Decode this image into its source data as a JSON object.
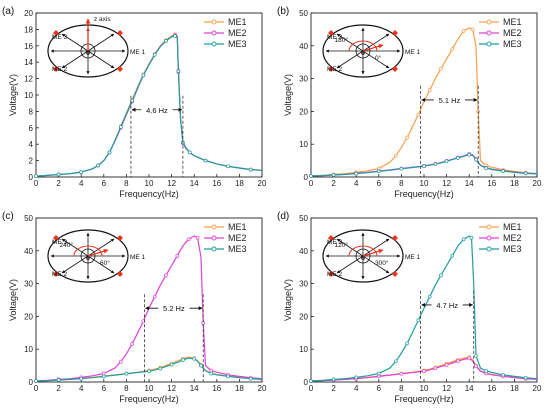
{
  "figure": {
    "panels": [
      {
        "label": "(a)",
        "inset": {
          "me1": "ME 1",
          "me2": "ME 2",
          "me3": "ME 3",
          "origin": "o",
          "axis_text": "z axis",
          "angles": []
        },
        "annotation": {
          "text": "4.6 Hz",
          "from_x": 8.4,
          "to_x": 13.0,
          "y": 8.2
        }
      },
      {
        "label": "(b)",
        "inset": {
          "me1": "ME 1",
          "me2": "ME 2",
          "me3": "ME 3",
          "origin": "o",
          "axis_text": "",
          "angles": [
            "180°",
            "0°"
          ]
        },
        "annotation": {
          "text": "5.1 Hz",
          "from_x": 9.7,
          "to_x": 14.8,
          "y": 23.5
        }
      },
      {
        "label": "(c)",
        "inset": {
          "me1": "ME 1",
          "me2": "ME 2",
          "me3": "ME 3",
          "origin": "o",
          "axis_text": "",
          "angles": [
            "240°",
            "60°"
          ]
        },
        "annotation": {
          "text": "5.2 Hz",
          "from_x": 9.6,
          "to_x": 14.8,
          "y": 22.5
        }
      },
      {
        "label": "(d)",
        "inset": {
          "me1": "ME 1",
          "me2": "ME 2",
          "me3": "ME 3",
          "origin": "o",
          "axis_text": "",
          "angles": [
            "120°",
            "300°"
          ]
        },
        "annotation": {
          "text": "4.7 Hz",
          "from_x": 9.7,
          "to_x": 14.4,
          "y": 23.5
        }
      }
    ]
  },
  "colors": {
    "ME1": "#F5A04A",
    "ME2": "#E040D8",
    "ME3": "#1E9E9E",
    "inset_arrow": "#E8361E",
    "axes": "#222222"
  },
  "chart_data": [
    {
      "type": "line",
      "xlabel": "Frequency(Hz)",
      "ylabel": "Voltage(V)",
      "xlim": [
        0,
        20
      ],
      "ylim": [
        0,
        20
      ],
      "xticks": [
        0,
        2,
        4,
        6,
        8,
        10,
        12,
        14,
        16,
        18,
        20
      ],
      "yticks": [
        0,
        2,
        4,
        6,
        8,
        10,
        12,
        14,
        16,
        18,
        20
      ],
      "legend": "top-right",
      "grid": false,
      "series": [
        {
          "name": "ME1",
          "x": [
            0,
            1,
            2,
            3,
            4,
            5,
            5.5,
            6,
            6.5,
            7,
            7.5,
            8,
            8.5,
            9,
            9.5,
            10,
            10.5,
            11,
            11.5,
            12,
            12.3,
            12.5,
            12.6,
            12.8,
            13,
            13.3,
            13.6,
            14,
            15,
            16,
            17,
            18,
            19,
            20
          ],
          "y": [
            0.1,
            0.2,
            0.3,
            0.4,
            0.6,
            1.0,
            1.4,
            2.0,
            3.0,
            4.5,
            6.2,
            7.8,
            9.4,
            11.0,
            12.5,
            13.8,
            15.0,
            16.0,
            16.7,
            17.2,
            17.4,
            17.2,
            13.0,
            7.0,
            4.2,
            3.5,
            3.0,
            2.6,
            2.0,
            1.6,
            1.3,
            1.1,
            0.9,
            0.8
          ]
        },
        {
          "name": "ME2",
          "x": [
            0,
            1,
            2,
            3,
            4,
            5,
            5.5,
            6,
            6.5,
            7,
            7.5,
            8,
            8.5,
            9,
            9.5,
            10,
            10.5,
            11,
            11.5,
            12,
            12.3,
            12.5,
            12.6,
            12.8,
            13,
            13.3,
            13.6,
            14,
            15,
            16,
            17,
            18,
            19,
            20
          ],
          "y": [
            0.1,
            0.2,
            0.3,
            0.4,
            0.6,
            1.0,
            1.4,
            2.0,
            3.0,
            4.4,
            6.0,
            7.6,
            9.2,
            10.8,
            12.4,
            13.7,
            14.9,
            15.9,
            16.6,
            17.1,
            17.3,
            17.1,
            12.8,
            7.0,
            4.1,
            3.4,
            3.0,
            2.6,
            2.0,
            1.6,
            1.3,
            1.1,
            0.9,
            0.8
          ]
        },
        {
          "name": "ME3",
          "x": [
            0,
            1,
            2,
            3,
            4,
            5,
            5.5,
            6,
            6.5,
            7,
            7.5,
            8,
            8.5,
            9,
            9.5,
            10,
            10.5,
            11,
            11.5,
            12,
            12.3,
            12.5,
            12.6,
            12.8,
            13,
            13.3,
            13.6,
            14,
            15,
            16,
            17,
            18,
            19,
            20
          ],
          "y": [
            0.1,
            0.2,
            0.3,
            0.4,
            0.6,
            1.0,
            1.4,
            2.0,
            3.0,
            4.5,
            6.1,
            7.7,
            9.3,
            10.9,
            12.4,
            13.7,
            14.9,
            15.9,
            16.6,
            17.1,
            17.2,
            17.0,
            12.9,
            7.0,
            4.2,
            3.5,
            3.0,
            2.6,
            2.0,
            1.6,
            1.3,
            1.1,
            0.9,
            0.8
          ]
        }
      ]
    },
    {
      "type": "line",
      "xlabel": "Frequency(Hz)",
      "ylabel": "Voltage(V)",
      "xlim": [
        0,
        20
      ],
      "ylim": [
        0,
        50
      ],
      "xticks": [
        0,
        2,
        4,
        6,
        8,
        10,
        12,
        14,
        16,
        18,
        20
      ],
      "yticks": [
        0,
        10,
        20,
        30,
        40,
        50
      ],
      "legend": "top-right",
      "grid": false,
      "series": [
        {
          "name": "ME1",
          "x": [
            0,
            1,
            2,
            3,
            4,
            5,
            6,
            7,
            7.5,
            8,
            8.5,
            9,
            9.5,
            10,
            10.5,
            11,
            11.5,
            12,
            12.5,
            13,
            13.5,
            14,
            14.3,
            14.6,
            14.8,
            15,
            15.5,
            16,
            17,
            18,
            19,
            20
          ],
          "y": [
            0.3,
            0.5,
            0.8,
            1.0,
            1.4,
            1.9,
            2.6,
            4.5,
            6.5,
            9.0,
            12.0,
            15.5,
            19.0,
            23.0,
            26.5,
            30.0,
            33.0,
            36.0,
            39.0,
            42.0,
            44.5,
            45.5,
            45.0,
            40.0,
            20.0,
            5.0,
            3.5,
            3.0,
            2.2,
            1.7,
            1.3,
            1.0
          ]
        },
        {
          "name": "ME2",
          "x": [
            0,
            1,
            2,
            3,
            4,
            5,
            6,
            7,
            8,
            9,
            10,
            10.5,
            11,
            11.5,
            12,
            12.5,
            13,
            13.5,
            14,
            14.3,
            14.6,
            15,
            15.5,
            16,
            17,
            18,
            19,
            20
          ],
          "y": [
            0.3,
            0.4,
            0.6,
            0.8,
            1.1,
            1.4,
            1.8,
            2.2,
            2.6,
            3.0,
            3.4,
            3.7,
            4.0,
            4.4,
            4.9,
            5.4,
            5.9,
            6.4,
            7.0,
            6.8,
            5.5,
            3.6,
            2.8,
            2.4,
            1.9,
            1.5,
            1.2,
            1.0
          ]
        },
        {
          "name": "ME3",
          "x": [
            0,
            1,
            2,
            3,
            4,
            5,
            6,
            7,
            8,
            9,
            10,
            10.5,
            11,
            11.5,
            12,
            12.5,
            13,
            13.5,
            14,
            14.3,
            14.6,
            15,
            15.5,
            16,
            17,
            18,
            19,
            20
          ],
          "y": [
            0.3,
            0.4,
            0.6,
            0.8,
            1.0,
            1.3,
            1.7,
            2.1,
            2.5,
            2.9,
            3.3,
            3.6,
            3.9,
            4.3,
            4.8,
            5.3,
            5.8,
            6.3,
            6.8,
            6.6,
            5.3,
            3.5,
            2.7,
            2.3,
            1.8,
            1.4,
            1.1,
            0.9
          ]
        }
      ]
    },
    {
      "type": "line",
      "xlabel": "Frequency(Hz)",
      "ylabel": "Voltage(V)",
      "xlim": [
        0,
        20
      ],
      "ylim": [
        0,
        50
      ],
      "xticks": [
        0,
        2,
        4,
        6,
        8,
        10,
        12,
        14,
        16,
        18,
        20
      ],
      "yticks": [
        0,
        10,
        20,
        30,
        40,
        50
      ],
      "legend": "top-right",
      "grid": false,
      "series": [
        {
          "name": "ME1",
          "x": [
            0,
            1,
            2,
            3,
            4,
            5,
            6,
            7,
            8,
            9,
            10,
            10.5,
            11,
            11.5,
            12,
            12.5,
            13,
            13.5,
            14,
            14.3,
            14.6,
            15,
            15.5,
            16,
            17,
            18,
            19,
            20
          ],
          "y": [
            0.3,
            0.4,
            0.6,
            0.8,
            1.1,
            1.4,
            1.8,
            2.2,
            2.6,
            3.0,
            3.5,
            3.9,
            4.4,
            5.0,
            5.7,
            6.4,
            7.1,
            7.6,
            7.3,
            6.5,
            5.2,
            3.5,
            2.7,
            2.3,
            1.8,
            1.4,
            1.1,
            0.9
          ]
        },
        {
          "name": "ME2",
          "x": [
            0,
            1,
            2,
            3,
            4,
            5,
            6,
            7,
            7.5,
            8,
            8.5,
            9,
            9.5,
            10,
            10.5,
            11,
            11.5,
            12,
            12.5,
            13,
            13.5,
            14,
            14.3,
            14.6,
            14.8,
            15,
            15.5,
            16,
            17,
            18,
            19,
            20
          ],
          "y": [
            0.3,
            0.5,
            0.8,
            1.0,
            1.4,
            1.9,
            2.6,
            4.3,
            6.2,
            8.6,
            11.6,
            15.0,
            18.5,
            22.5,
            26.0,
            29.5,
            32.5,
            35.5,
            38.5,
            41.5,
            43.5,
            44.5,
            44.0,
            38.0,
            18.0,
            5.0,
            3.5,
            3.0,
            2.2,
            1.7,
            1.3,
            1.0
          ]
        },
        {
          "name": "ME3",
          "x": [
            0,
            1,
            2,
            3,
            4,
            5,
            6,
            7,
            8,
            9,
            10,
            10.5,
            11,
            11.5,
            12,
            12.5,
            13,
            13.5,
            14,
            14.3,
            14.6,
            15,
            15.5,
            16,
            17,
            18,
            19,
            20
          ],
          "y": [
            0.3,
            0.4,
            0.6,
            0.8,
            1.0,
            1.3,
            1.7,
            2.1,
            2.5,
            2.9,
            3.3,
            3.7,
            4.1,
            4.7,
            5.3,
            6.0,
            6.7,
            7.3,
            7.1,
            6.3,
            5.0,
            3.4,
            2.6,
            2.2,
            1.7,
            1.3,
            1.0,
            0.8
          ]
        }
      ]
    },
    {
      "type": "line",
      "xlabel": "Frequency(Hz)",
      "ylabel": "Voltage(V)",
      "xlim": [
        0,
        20
      ],
      "ylim": [
        0,
        50
      ],
      "xticks": [
        0,
        2,
        4,
        6,
        8,
        10,
        12,
        14,
        16,
        18,
        20
      ],
      "yticks": [
        0,
        10,
        20,
        30,
        40,
        50
      ],
      "legend": "top-right",
      "grid": false,
      "series": [
        {
          "name": "ME1",
          "x": [
            0,
            1,
            2,
            3,
            4,
            5,
            6,
            7,
            8,
            9,
            10,
            10.5,
            11,
            11.5,
            12,
            12.5,
            13,
            13.5,
            14,
            14.3,
            14.6,
            15,
            15.5,
            16,
            17,
            18,
            19,
            20
          ],
          "y": [
            0.3,
            0.4,
            0.6,
            0.8,
            1.1,
            1.4,
            1.8,
            2.2,
            2.6,
            3.0,
            3.5,
            3.9,
            4.4,
            5.0,
            5.6,
            6.2,
            6.8,
            7.3,
            7.6,
            6.8,
            5.0,
            3.4,
            2.7,
            2.3,
            1.8,
            1.4,
            1.1,
            0.9
          ]
        },
        {
          "name": "ME2",
          "x": [
            0,
            1,
            2,
            3,
            4,
            5,
            6,
            7,
            8,
            9,
            10,
            10.5,
            11,
            11.5,
            12,
            12.5,
            13,
            13.5,
            14,
            14.3,
            14.6,
            15,
            15.5,
            16,
            17,
            18,
            19,
            20
          ],
          "y": [
            0.3,
            0.4,
            0.6,
            0.8,
            1.0,
            1.3,
            1.7,
            2.1,
            2.5,
            2.9,
            3.3,
            3.7,
            4.2,
            4.7,
            5.2,
            5.8,
            6.4,
            6.9,
            7.2,
            6.5,
            4.8,
            3.3,
            2.6,
            2.2,
            1.7,
            1.3,
            1.0,
            0.8
          ]
        },
        {
          "name": "ME3",
          "x": [
            0,
            1,
            2,
            3,
            4,
            5,
            6,
            7,
            7.5,
            8,
            8.5,
            9,
            9.5,
            10,
            10.5,
            11,
            11.5,
            12,
            12.5,
            13,
            13.5,
            14,
            14.2,
            14.4,
            14.6,
            15,
            15.5,
            16,
            17,
            18,
            19,
            20
          ],
          "y": [
            0.3,
            0.5,
            0.8,
            1.0,
            1.4,
            1.9,
            2.6,
            4.3,
            6.3,
            8.8,
            11.8,
            15.2,
            18.8,
            22.5,
            26.0,
            29.5,
            32.5,
            35.5,
            38.5,
            41.5,
            43.5,
            44.5,
            44.0,
            30.0,
            8.0,
            4.2,
            3.4,
            2.9,
            2.2,
            1.7,
            1.3,
            1.0
          ]
        }
      ]
    }
  ]
}
